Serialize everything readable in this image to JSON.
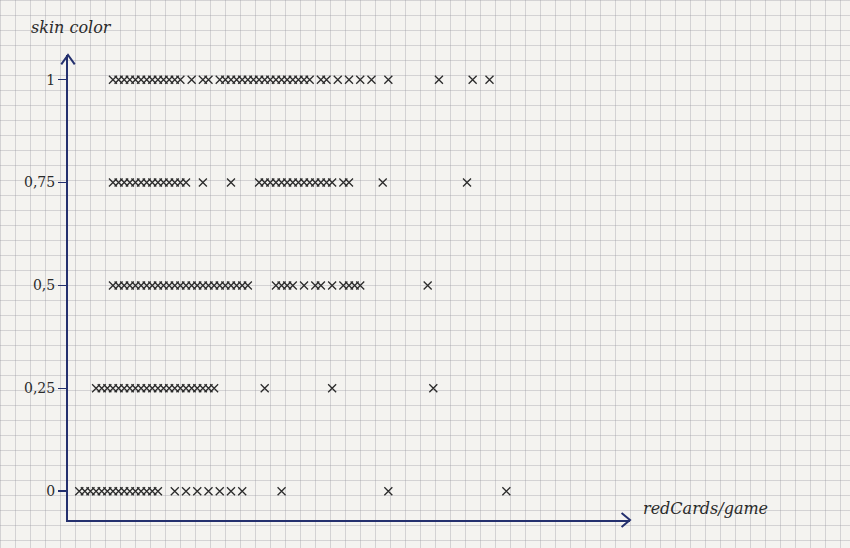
{
  "chart_data": {
    "type": "scatter",
    "x_label": "redCards/game",
    "y_label": "skin color",
    "marker": "x",
    "color": "#2b2b2b",
    "grid": false,
    "tick_labels": "y",
    "xlim": [
      0,
      1
    ],
    "ylim": [
      -0.07,
      1.06
    ],
    "yticks": [
      0,
      {
        "value": 0.25,
        "label": "0,25"
      },
      {
        "value": 0.5,
        "label": "0,5"
      },
      {
        "value": 0.75,
        "label": "0,75"
      },
      1
    ],
    "x": [
      0.08,
      0.09,
      0.1,
      0.11,
      0.12,
      0.13,
      0.14,
      0.15,
      0.16,
      0.17,
      0.18,
      0.19,
      0.2,
      0.22,
      0.24,
      0.25,
      0.27,
      0.28,
      0.29,
      0.3,
      0.31,
      0.32,
      0.33,
      0.34,
      0.35,
      0.36,
      0.37,
      0.38,
      0.39,
      0.4,
      0.41,
      0.42,
      0.43,
      0.45,
      0.46,
      0.48,
      0.5,
      0.52,
      0.54,
      0.57,
      0.66,
      0.72,
      0.75,
      0.08,
      0.09,
      0.1,
      0.11,
      0.12,
      0.13,
      0.14,
      0.15,
      0.16,
      0.17,
      0.18,
      0.19,
      0.2,
      0.21,
      0.24,
      0.29,
      0.34,
      0.35,
      0.36,
      0.37,
      0.38,
      0.39,
      0.4,
      0.41,
      0.42,
      0.43,
      0.44,
      0.45,
      0.46,
      0.47,
      0.49,
      0.5,
      0.56,
      0.71,
      0.08,
      0.09,
      0.1,
      0.11,
      0.12,
      0.13,
      0.14,
      0.15,
      0.16,
      0.17,
      0.18,
      0.19,
      0.2,
      0.21,
      0.22,
      0.23,
      0.24,
      0.25,
      0.26,
      0.27,
      0.28,
      0.29,
      0.3,
      0.31,
      0.32,
      0.37,
      0.38,
      0.39,
      0.4,
      0.42,
      0.44,
      0.45,
      0.47,
      0.49,
      0.5,
      0.51,
      0.52,
      0.64,
      0.05,
      0.06,
      0.07,
      0.08,
      0.09,
      0.1,
      0.11,
      0.12,
      0.13,
      0.14,
      0.15,
      0.16,
      0.17,
      0.18,
      0.19,
      0.2,
      0.21,
      0.22,
      0.23,
      0.24,
      0.25,
      0.26,
      0.35,
      0.47,
      0.65,
      0.02,
      0.03,
      0.04,
      0.05,
      0.06,
      0.07,
      0.08,
      0.09,
      0.1,
      0.11,
      0.12,
      0.13,
      0.14,
      0.15,
      0.16,
      0.19,
      0.21,
      0.23,
      0.25,
      0.27,
      0.29,
      0.31,
      0.38,
      0.57,
      0.78
    ],
    "values": [
      1,
      1,
      1,
      1,
      1,
      1,
      1,
      1,
      1,
      1,
      1,
      1,
      1,
      1,
      1,
      1,
      1,
      1,
      1,
      1,
      1,
      1,
      1,
      1,
      1,
      1,
      1,
      1,
      1,
      1,
      1,
      1,
      1,
      1,
      1,
      1,
      1,
      1,
      1,
      1,
      1,
      1,
      1,
      0.75,
      0.75,
      0.75,
      0.75,
      0.75,
      0.75,
      0.75,
      0.75,
      0.75,
      0.75,
      0.75,
      0.75,
      0.75,
      0.75,
      0.75,
      0.75,
      0.75,
      0.75,
      0.75,
      0.75,
      0.75,
      0.75,
      0.75,
      0.75,
      0.75,
      0.75,
      0.75,
      0.75,
      0.75,
      0.75,
      0.75,
      0.75,
      0.75,
      0.75,
      0.5,
      0.5,
      0.5,
      0.5,
      0.5,
      0.5,
      0.5,
      0.5,
      0.5,
      0.5,
      0.5,
      0.5,
      0.5,
      0.5,
      0.5,
      0.5,
      0.5,
      0.5,
      0.5,
      0.5,
      0.5,
      0.5,
      0.5,
      0.5,
      0.5,
      0.5,
      0.5,
      0.5,
      0.5,
      0.5,
      0.5,
      0.5,
      0.5,
      0.5,
      0.5,
      0.5,
      0.5,
      0.5,
      0.25,
      0.25,
      0.25,
      0.25,
      0.25,
      0.25,
      0.25,
      0.25,
      0.25,
      0.25,
      0.25,
      0.25,
      0.25,
      0.25,
      0.25,
      0.25,
      0.25,
      0.25,
      0.25,
      0.25,
      0.25,
      0.25,
      0.25,
      0.25,
      0.25,
      0,
      0,
      0,
      0,
      0,
      0,
      0,
      0,
      0,
      0,
      0,
      0,
      0,
      0,
      0,
      0,
      0,
      0,
      0,
      0,
      0,
      0,
      0,
      0,
      0
    ]
  }
}
